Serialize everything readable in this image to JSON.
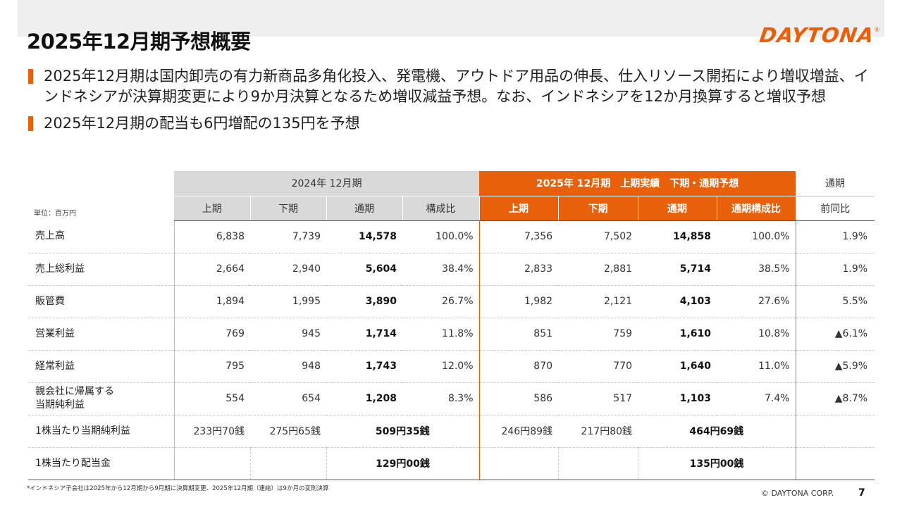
{
  "title": "2025年12月期予想概要",
  "logo": "DAYTONA",
  "logo_mark": "®",
  "bullets": [
    "2025年12月期は国内卸売の有力新商品多角化投入、発電機、アウトドア用品の伸長、仕入リソース開拓により増収増益、インドネシアが決算期変更により9か月決算となるため増収減益予想。なお、インドネシアを12か月換算すると増収予想",
    "2025年12月期の配当も6円増配の135円を予想"
  ],
  "table": {
    "unit": "単位：百万円",
    "group_2024": "2024年 12月期",
    "group_2025": "2025年 12月期　上期実績　下期・通期予想",
    "group_yoy": "通期",
    "sub_2024": [
      "上期",
      "下期",
      "通期",
      "構成比"
    ],
    "sub_2025": [
      "上期",
      "下期",
      "通期",
      "通期構成比"
    ],
    "sub_yoy": "前同比",
    "rows": [
      {
        "label": "売上高",
        "v": [
          "6,838",
          "7,739",
          "14,578",
          "100.0%",
          "7,356",
          "7,502",
          "14,858",
          "100.0%",
          "1.9%"
        ]
      },
      {
        "label": "売上総利益",
        "v": [
          "2,664",
          "2,940",
          "5,604",
          "38.4%",
          "2,833",
          "2,881",
          "5,714",
          "38.5%",
          "1.9%"
        ]
      },
      {
        "label": "販管費",
        "v": [
          "1,894",
          "1,995",
          "3,890",
          "26.7%",
          "1,982",
          "2,121",
          "4,103",
          "27.6%",
          "5.5%"
        ]
      },
      {
        "label": "営業利益",
        "v": [
          "769",
          "945",
          "1,714",
          "11.8%",
          "851",
          "759",
          "1,610",
          "10.8%",
          "▲6.1%"
        ]
      },
      {
        "label": "経常利益",
        "v": [
          "795",
          "948",
          "1,743",
          "12.0%",
          "870",
          "770",
          "1,640",
          "11.0%",
          "▲5.9%"
        ]
      },
      {
        "label": "親会社に帰属する",
        "label2": "当期純利益",
        "v": [
          "554",
          "654",
          "1,208",
          "8.3%",
          "586",
          "517",
          "1,103",
          "7.4%",
          "▲8.7%"
        ]
      }
    ],
    "eps": {
      "label": "1株当たり当期純利益",
      "h1_2024": "233円70銭",
      "h2_2024": "275円65銭",
      "fy_2024": "509円35銭",
      "h1_2025": "246円89銭",
      "h2_2025": "217円80銭",
      "fy_2025": "464円69銭"
    },
    "dps": {
      "label": "1株当たり配当金",
      "fy_2024": "129円00銭",
      "fy_2025": "135円00銭"
    }
  },
  "footnote": "*インドネシア子会社は2025年から12月期から9月期に決算期変更、2025年12月期（連結）は9か月の変則決算",
  "copyright": "© DAYTONA CORP.",
  "page_number": "7",
  "accent_color": "#e8600a"
}
